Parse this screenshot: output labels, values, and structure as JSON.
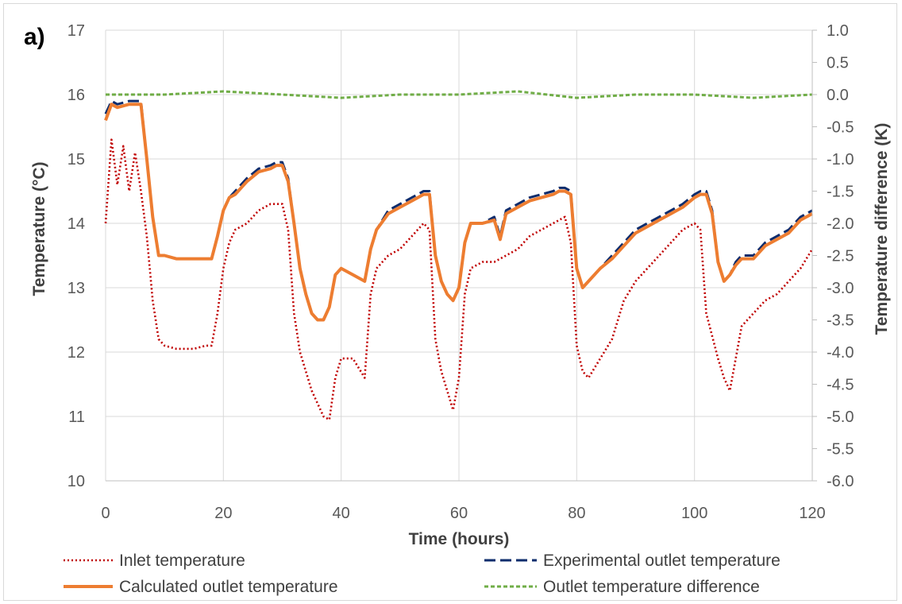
{
  "chart_data": {
    "type": "line",
    "panel_label": "a)",
    "xlabel": "Time (hours)",
    "ylabel": "Temperature (°C)",
    "y2label": "Temperature difference (K)",
    "xlim": [
      0,
      120
    ],
    "ylim": [
      10,
      17
    ],
    "y2lim": [
      -6.0,
      1.0
    ],
    "grid": true,
    "legend_position": "bottom",
    "x_ticks": [
      "0",
      "20",
      "40",
      "60",
      "80",
      "100",
      "120"
    ],
    "y_ticks": [
      "10",
      "11",
      "12",
      "13",
      "14",
      "15",
      "16",
      "17"
    ],
    "y2_ticks": [
      "-6.0",
      "-5.5",
      "-5.0",
      "-4.5",
      "-4.0",
      "-3.5",
      "-3.0",
      "-2.5",
      "-2.0",
      "-1.5",
      "-1.0",
      "-0.5",
      "0.0",
      "0.5",
      "1.0"
    ],
    "series": [
      {
        "name": "Inlet temperature",
        "axis": "left",
        "style": "dotted",
        "color": "#c00000",
        "x": [
          0,
          1,
          2,
          3,
          4,
          5,
          6,
          7,
          8,
          9,
          10,
          12,
          15,
          17,
          18,
          19,
          20,
          21,
          22,
          24,
          26,
          28,
          30,
          31,
          32,
          33,
          35,
          37,
          38,
          39,
          40,
          42,
          44,
          45,
          46,
          48,
          50,
          52,
          54,
          55,
          56,
          57,
          58,
          59,
          60,
          61,
          62,
          64,
          66,
          68,
          70,
          72,
          74,
          76,
          78,
          79,
          80,
          81,
          82,
          84,
          86,
          88,
          90,
          92,
          94,
          96,
          98,
          100,
          101,
          102,
          104,
          105,
          106,
          107,
          108,
          110,
          112,
          114,
          116,
          118,
          120
        ],
        "y": [
          14.0,
          15.3,
          14.6,
          15.2,
          14.5,
          15.1,
          14.5,
          13.8,
          12.8,
          12.2,
          12.1,
          12.05,
          12.05,
          12.1,
          12.1,
          12.6,
          13.3,
          13.7,
          13.9,
          14.0,
          14.2,
          14.3,
          14.3,
          13.9,
          12.6,
          12.0,
          11.4,
          11.0,
          10.95,
          11.6,
          11.9,
          11.9,
          11.6,
          12.9,
          13.3,
          13.5,
          13.6,
          13.8,
          14.0,
          13.9,
          12.2,
          11.7,
          11.4,
          11.1,
          11.6,
          12.9,
          13.3,
          13.4,
          13.4,
          13.5,
          13.6,
          13.8,
          13.9,
          14.0,
          14.1,
          13.7,
          12.1,
          11.7,
          11.6,
          11.9,
          12.2,
          12.8,
          13.1,
          13.3,
          13.5,
          13.7,
          13.9,
          14.0,
          13.9,
          12.6,
          11.9,
          11.6,
          11.4,
          11.9,
          12.4,
          12.6,
          12.8,
          12.9,
          13.1,
          13.3,
          13.6
        ]
      },
      {
        "name": "Experimental outlet temperature",
        "axis": "left",
        "style": "dashed",
        "color": "#0d2c6c",
        "x": [
          0,
          1,
          2,
          4,
          6,
          7,
          8,
          9,
          10,
          12,
          14,
          16,
          18,
          19,
          20,
          21,
          22,
          24,
          26,
          28,
          29,
          30,
          31,
          32,
          33,
          34,
          35,
          36,
          37,
          38,
          39,
          40,
          42,
          44,
          45,
          46,
          48,
          50,
          52,
          54,
          55,
          56,
          57,
          58,
          59,
          60,
          61,
          62,
          64,
          66,
          67,
          68,
          70,
          72,
          74,
          76,
          77,
          78,
          79,
          80,
          81,
          82,
          84,
          86,
          88,
          90,
          92,
          94,
          96,
          98,
          100,
          101,
          102,
          103,
          104,
          105,
          106,
          107,
          108,
          110,
          112,
          114,
          116,
          118,
          120
        ],
        "y": [
          15.7,
          15.9,
          15.85,
          15.9,
          15.9,
          15.0,
          14.1,
          13.5,
          13.5,
          13.45,
          13.45,
          13.45,
          13.45,
          13.8,
          14.2,
          14.4,
          14.5,
          14.7,
          14.85,
          14.9,
          14.95,
          14.95,
          14.7,
          14.0,
          13.3,
          12.9,
          12.6,
          12.5,
          12.5,
          12.7,
          13.2,
          13.3,
          13.2,
          13.1,
          13.6,
          13.9,
          14.2,
          14.3,
          14.4,
          14.5,
          14.5,
          13.5,
          13.1,
          12.9,
          12.8,
          13.0,
          13.7,
          14.0,
          14.0,
          14.1,
          13.8,
          14.2,
          14.3,
          14.4,
          14.45,
          14.5,
          14.55,
          14.55,
          14.5,
          13.3,
          13.0,
          13.1,
          13.3,
          13.5,
          13.7,
          13.9,
          14.0,
          14.1,
          14.2,
          14.3,
          14.45,
          14.5,
          14.5,
          14.2,
          13.4,
          13.1,
          13.2,
          13.4,
          13.5,
          13.5,
          13.7,
          13.8,
          13.9,
          14.1,
          14.2
        ]
      },
      {
        "name": "Calculated outlet temperature",
        "axis": "left",
        "style": "solid",
        "color": "#ed7d31",
        "x": [
          0,
          1,
          2,
          4,
          6,
          7,
          8,
          9,
          10,
          12,
          14,
          16,
          18,
          19,
          20,
          21,
          22,
          24,
          26,
          28,
          29,
          30,
          31,
          32,
          33,
          34,
          35,
          36,
          37,
          38,
          39,
          40,
          42,
          44,
          45,
          46,
          48,
          50,
          52,
          54,
          55,
          56,
          57,
          58,
          59,
          60,
          61,
          62,
          64,
          66,
          67,
          68,
          70,
          72,
          74,
          76,
          77,
          78,
          79,
          80,
          81,
          82,
          84,
          86,
          88,
          90,
          92,
          94,
          96,
          98,
          100,
          101,
          102,
          103,
          104,
          105,
          106,
          107,
          108,
          110,
          112,
          114,
          116,
          118,
          120
        ],
        "y": [
          15.6,
          15.85,
          15.8,
          15.85,
          15.85,
          15.0,
          14.1,
          13.5,
          13.5,
          13.45,
          13.45,
          13.45,
          13.45,
          13.8,
          14.2,
          14.4,
          14.45,
          14.65,
          14.8,
          14.85,
          14.9,
          14.9,
          14.65,
          14.0,
          13.3,
          12.9,
          12.6,
          12.5,
          12.5,
          12.7,
          13.2,
          13.3,
          13.2,
          13.1,
          13.6,
          13.9,
          14.15,
          14.25,
          14.35,
          14.45,
          14.45,
          13.5,
          13.1,
          12.9,
          12.8,
          13.0,
          13.7,
          14.0,
          14.0,
          14.05,
          13.75,
          14.15,
          14.25,
          14.35,
          14.4,
          14.45,
          14.5,
          14.5,
          14.45,
          13.3,
          13.0,
          13.1,
          13.3,
          13.45,
          13.65,
          13.85,
          13.95,
          14.05,
          14.15,
          14.25,
          14.4,
          14.45,
          14.45,
          14.15,
          13.4,
          13.1,
          13.2,
          13.35,
          13.45,
          13.45,
          13.65,
          13.75,
          13.85,
          14.05,
          14.15
        ]
      },
      {
        "name": "Outlet temperature difference",
        "axis": "right",
        "style": "dashed",
        "color": "#70ad47",
        "x": [
          0,
          10,
          20,
          30,
          40,
          50,
          60,
          70,
          80,
          90,
          100,
          110,
          120
        ],
        "y": [
          0.0,
          0.0,
          0.05,
          0.0,
          -0.05,
          0.0,
          0.0,
          0.05,
          -0.05,
          0.0,
          0.0,
          -0.05,
          0.0
        ]
      }
    ]
  }
}
